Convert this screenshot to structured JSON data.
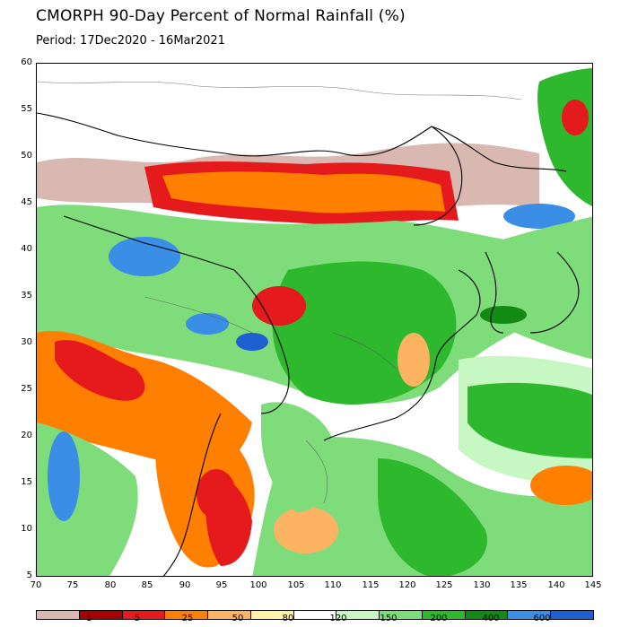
{
  "title": "CMORPH 90-Day Percent of Normal Rainfall (%)",
  "period": "Period: 17Dec2020 - 16Mar2021",
  "map": {
    "lon_range": [
      70,
      145
    ],
    "lat_range": [
      5,
      60
    ],
    "lat_ticks": [
      "60",
      "55",
      "50",
      "45",
      "40",
      "35",
      "30",
      "25",
      "20",
      "15",
      "10",
      "5"
    ],
    "lon_ticks": [
      "70",
      "75",
      "80",
      "85",
      "90",
      "95",
      "100",
      "105",
      "110",
      "115",
      "120",
      "125",
      "130",
      "135",
      "140",
      "145"
    ]
  },
  "legend": {
    "colors": [
      "#d8b8b0",
      "#a80000",
      "#e41a1c",
      "#ff7f00",
      "#fdb462",
      "#fff2a8",
      "#ffffff",
      "#c7f7c2",
      "#7fdc7a",
      "#2eb82e",
      "#138a13",
      "#3a8ee6",
      "#1f5fd1"
    ],
    "labels": [
      "1",
      "5",
      "25",
      "50",
      "80",
      "120",
      "150",
      "200",
      "400",
      "600"
    ]
  }
}
